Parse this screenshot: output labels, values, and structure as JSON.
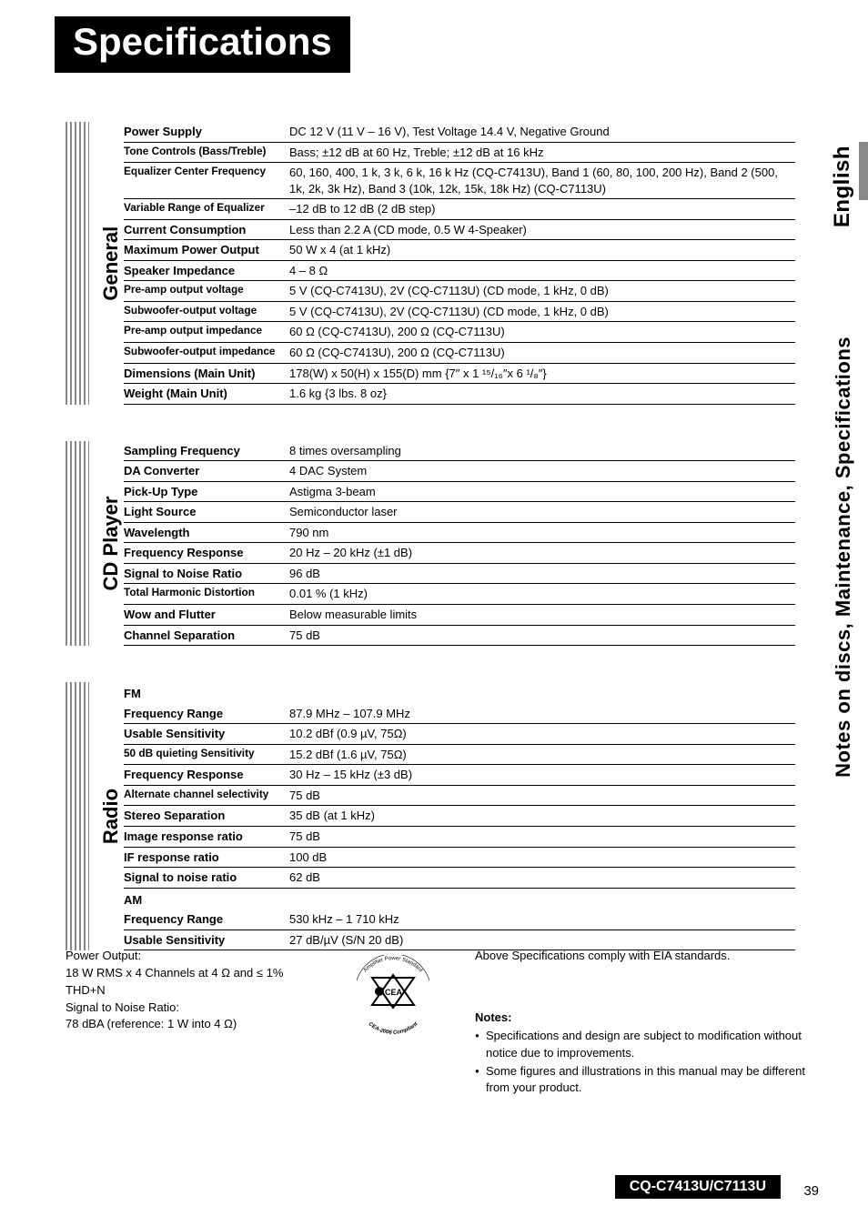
{
  "page_title": "Specifications",
  "language_label": "English",
  "breadcrumb_label": "Notes on discs, Maintenance, Specifications",
  "model": "CQ-C7413U/C7113U",
  "page_number": "39",
  "sections": {
    "general": {
      "label": "General",
      "rows": [
        {
          "label": "Power Supply",
          "value": "DC 12 V (11 V – 16 V), Test Voltage 14.4 V, Negative Ground"
        },
        {
          "label": "Tone Controls (Bass/Treble)",
          "value": "Bass; ±12 dB at 60 Hz, Treble; ±12 dB at 16 kHz",
          "small": true
        },
        {
          "label": "Equalizer Center Frequency",
          "value": "60, 160, 400, 1 k, 3 k, 6 k, 16 k Hz (CQ-C7413U), Band 1 (60, 80, 100, 200 Hz), Band 2 (500, 1k, 2k, 3k Hz), Band 3 (10k, 12k, 15k, 18k Hz) (CQ-C7113U)",
          "small": true
        },
        {
          "label": "Variable Range of Equalizer",
          "value": "–12 dB to 12 dB (2 dB step)",
          "small": true
        },
        {
          "label": "Current Consumption",
          "value": "Less than 2.2 A (CD mode, 0.5 W 4-Speaker)"
        },
        {
          "label": "Maximum Power Output",
          "value": "50 W x 4 (at 1 kHz)"
        },
        {
          "label": "Speaker Impedance",
          "value": "4 – 8 Ω"
        },
        {
          "label": "Pre-amp output voltage",
          "value": "5 V (CQ-C7413U), 2V (CQ-C7113U) (CD mode, 1 kHz, 0 dB)",
          "small": true
        },
        {
          "label": "Subwoofer-output voltage",
          "value": "5 V (CQ-C7413U), 2V (CQ-C7113U) (CD mode, 1 kHz, 0 dB)",
          "small": true
        },
        {
          "label": "Pre-amp output impedance",
          "value": "60 Ω (CQ-C7413U), 200 Ω (CQ-C7113U)",
          "small": true
        },
        {
          "label": "Subwoofer-output impedance",
          "value": "60 Ω (CQ-C7413U), 200 Ω (CQ-C7113U)",
          "small": true
        },
        {
          "label": "Dimensions (Main Unit)",
          "value": "178(W) x 50(H) x 155(D) mm {7″ x 1 ¹⁵/₁₆″x 6 ¹/₈″}"
        },
        {
          "label": "Weight (Main Unit)",
          "value": "1.6 kg {3 lbs. 8 oz}"
        }
      ]
    },
    "cd_player": {
      "label": "CD Player",
      "rows": [
        {
          "label": "Sampling Frequency",
          "value": "8 times oversampling"
        },
        {
          "label": "DA Converter",
          "value": "4 DAC System"
        },
        {
          "label": "Pick-Up Type",
          "value": "Astigma 3-beam"
        },
        {
          "label": "Light Source",
          "value": "Semiconductor laser"
        },
        {
          "label": "Wavelength",
          "value": "790 nm"
        },
        {
          "label": "Frequency Response",
          "value": "20 Hz – 20 kHz (±1 dB)"
        },
        {
          "label": "Signal to Noise Ratio",
          "value": "96 dB"
        },
        {
          "label": "Total Harmonic Distortion",
          "value": "0.01 % (1 kHz)",
          "small": true
        },
        {
          "label": "Wow and Flutter",
          "value": "Below measurable limits"
        },
        {
          "label": "Channel Separation",
          "value": "75 dB"
        }
      ]
    },
    "radio": {
      "label": "Radio",
      "fm_label": "FM",
      "fm_rows": [
        {
          "label": "Frequency Range",
          "value": "87.9 MHz – 107.9 MHz"
        },
        {
          "label": "Usable Sensitivity",
          "value": "10.2 dBf (0.9 µV, 75Ω)"
        },
        {
          "label": "50 dB quieting Sensitivity",
          "value": "15.2 dBf (1.6 µV, 75Ω)",
          "small": true
        },
        {
          "label": "Frequency Response",
          "value": "30 Hz – 15 kHz (±3 dB)"
        },
        {
          "label": "Alternate channel selectivity",
          "value": "75 dB",
          "small": true
        },
        {
          "label": "Stereo Separation",
          "value": "35 dB (at 1 kHz)"
        },
        {
          "label": "Image response ratio",
          "value": "75 dB"
        },
        {
          "label": "IF response ratio",
          "value": "100 dB"
        },
        {
          "label": "Signal to noise ratio",
          "value": "62 dB"
        }
      ],
      "am_label": "AM",
      "am_rows": [
        {
          "label": "Frequency Range",
          "value": "530 kHz – 1 710 kHz"
        },
        {
          "label": "Usable Sensitivity",
          "value": "27 dB/µV (S/N 20 dB)"
        }
      ]
    }
  },
  "footer": {
    "power_output_label": "Power Output:",
    "power_output_value": "18 W RMS x 4 Channels at 4 Ω and ≤ 1% THD+N",
    "snr_label": "Signal to Noise Ratio:",
    "snr_value": "78 dBA (reference: 1 W into 4 Ω)",
    "compliance": "Above Specifications comply with EIA standards.",
    "notes_title": "Notes:",
    "notes": [
      "Specifications and design are subject to modification without notice due to improvements.",
      "Some figures and illustrations in this manual may be different from your product."
    ],
    "logo_top": "Amplifier Power Standard",
    "logo_mid": "CEA",
    "logo_bottom": "CEA-2006 Compliant"
  }
}
